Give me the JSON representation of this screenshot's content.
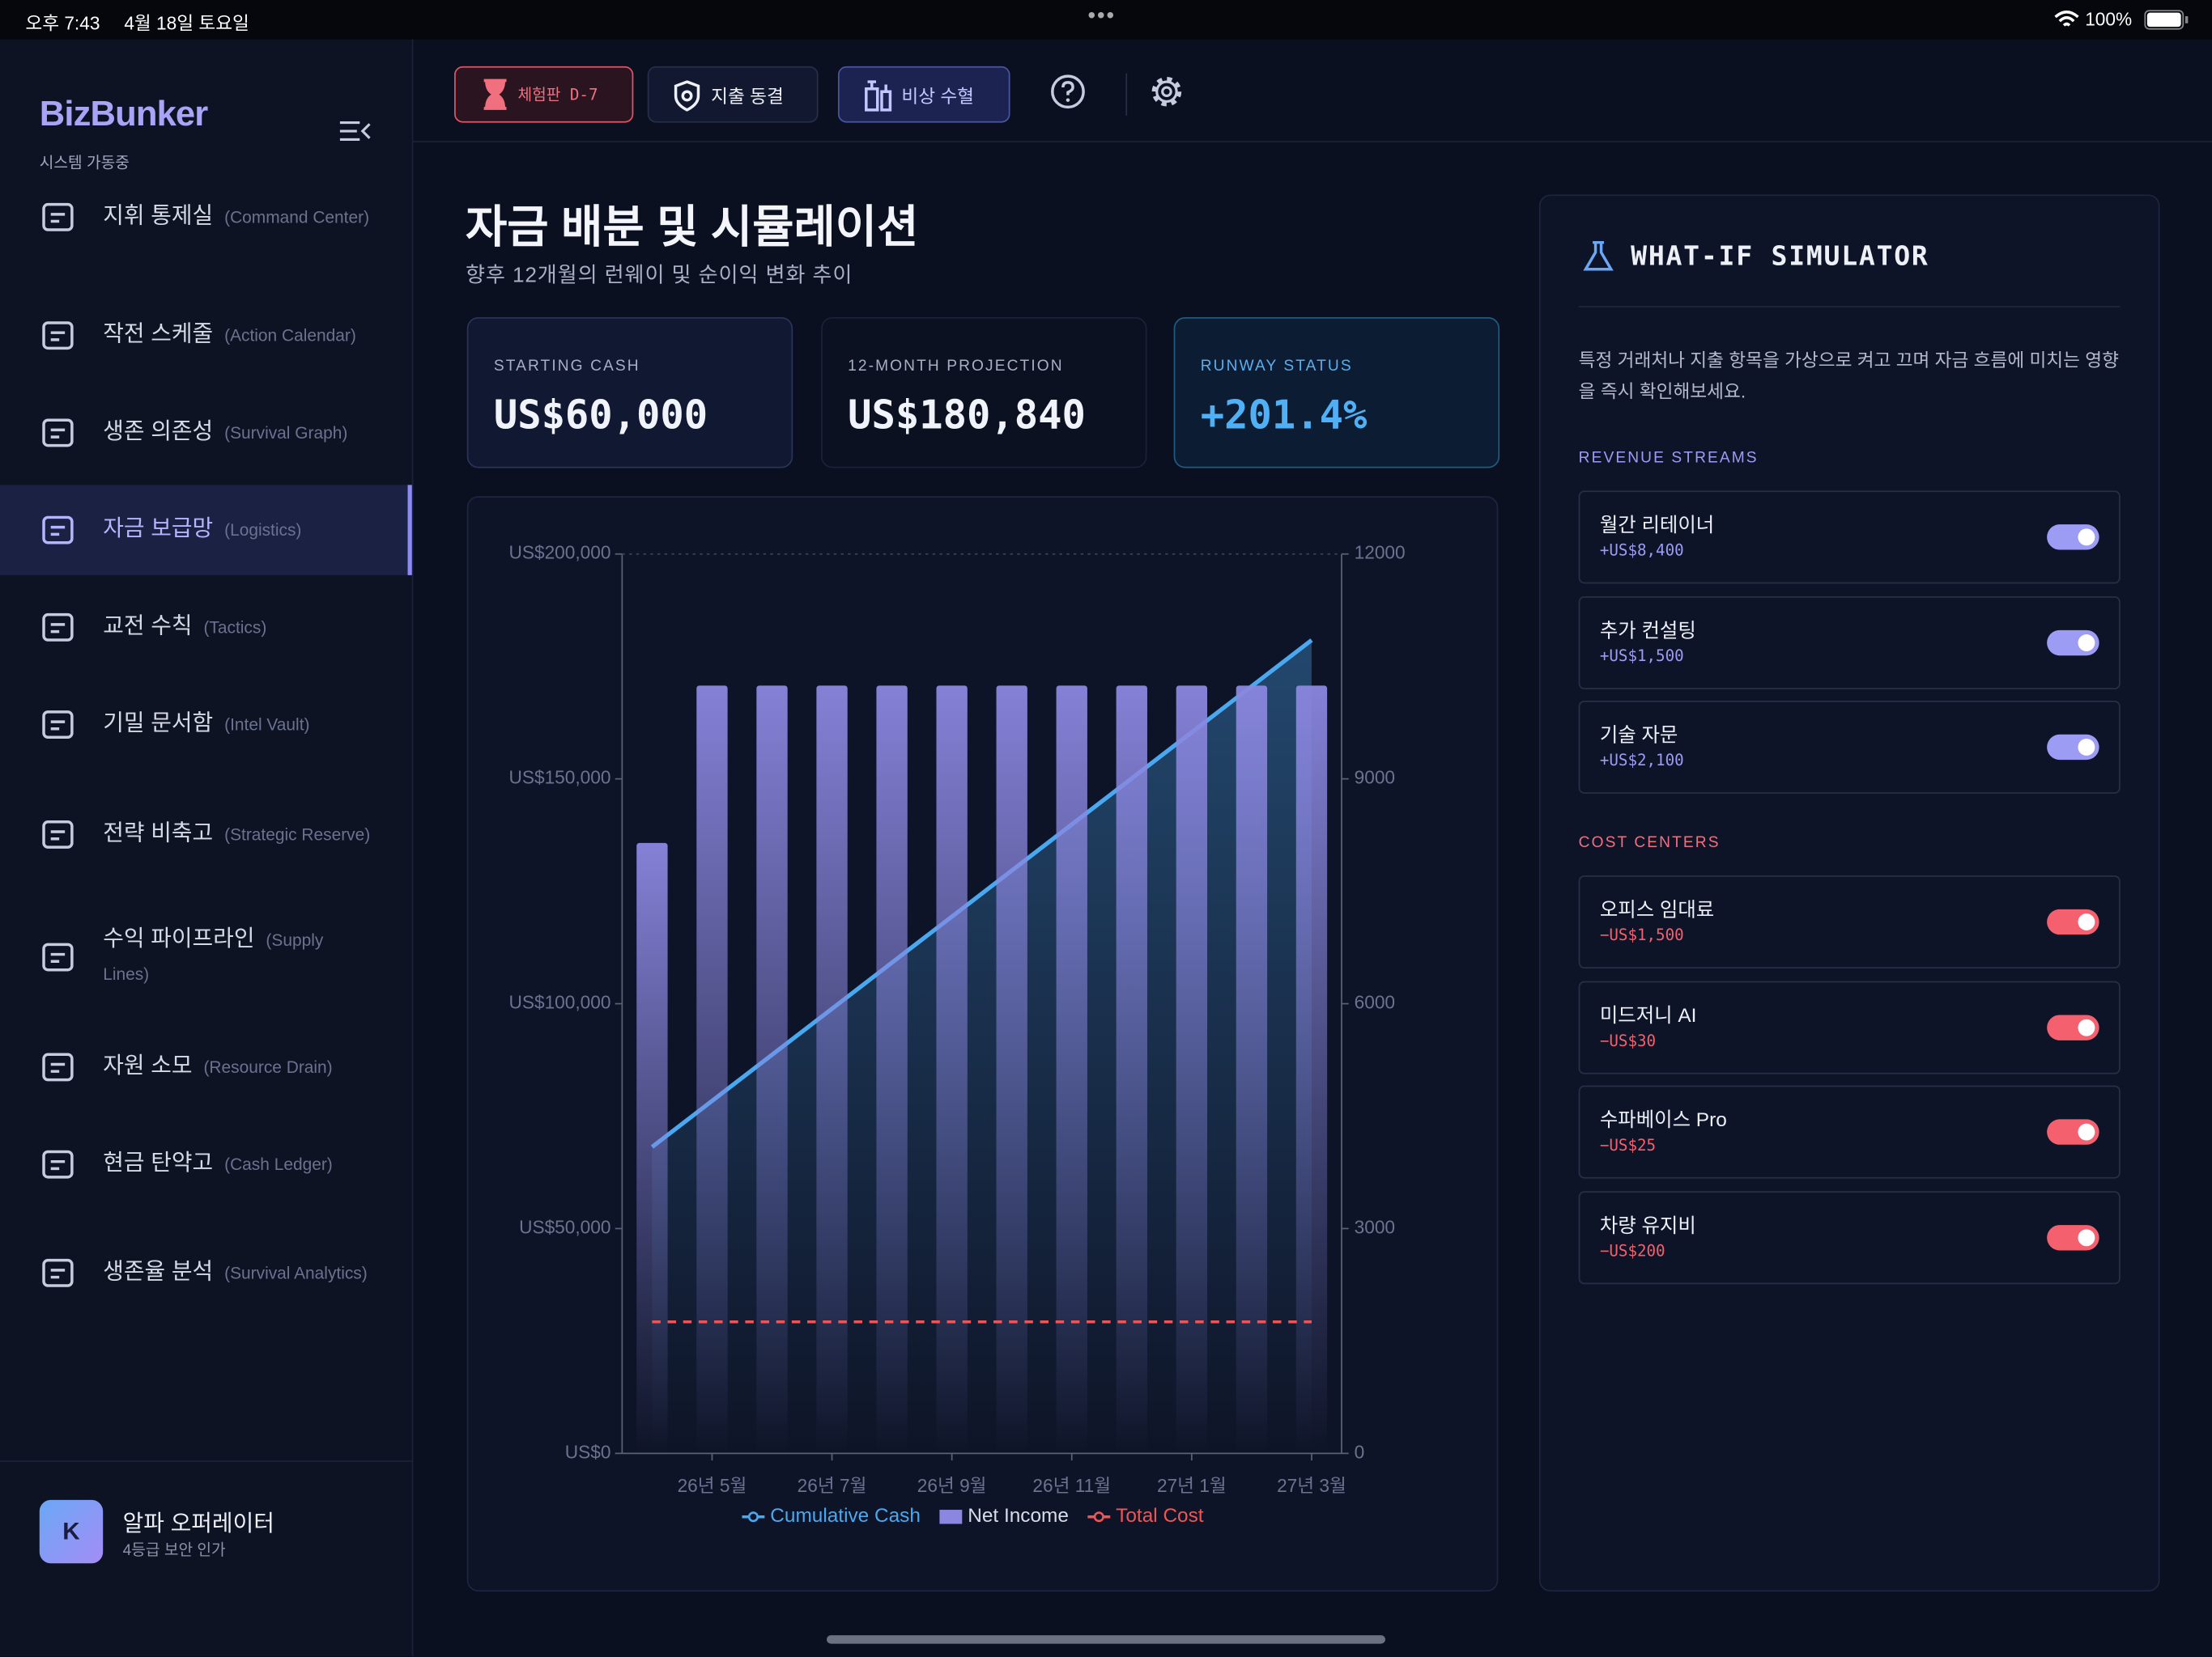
{
  "status_bar": {
    "time": "오후 7:43",
    "date": "4월 18일 토요일",
    "battery": "100%"
  },
  "sidebar": {
    "brand": "BizBunker",
    "status": "시스템 가동중",
    "items": [
      {
        "label": "지휘 통제실",
        "sub": "(Command Center)"
      },
      {
        "label": "작전 스케줄",
        "sub": "(Action Calendar)"
      },
      {
        "label": "생존 의존성",
        "sub": "(Survival Graph)"
      },
      {
        "label": "자금 보급망",
        "sub": "(Logistics)",
        "active": true
      },
      {
        "label": "교전 수칙",
        "sub": "(Tactics)"
      },
      {
        "label": "기밀 문서함",
        "sub": "(Intel Vault)"
      },
      {
        "label": "전략 비축고",
        "sub": "(Strategic Reserve)"
      },
      {
        "label": "수익 파이프라인",
        "sub": "(Supply Lines)"
      },
      {
        "label": "자원 소모",
        "sub": "(Resource Drain)"
      },
      {
        "label": "현금 탄약고",
        "sub": "(Cash Ledger)"
      },
      {
        "label": "생존율 분석",
        "sub": "(Survival Analytics)"
      }
    ],
    "user": {
      "avatar": "K",
      "name": "알파 오퍼레이터",
      "role": "4등급 보안 인가"
    }
  },
  "toolbar": {
    "buttons": [
      "체험판 D-7",
      "지출 동결",
      "비상 수혈"
    ]
  },
  "header": {
    "title": "자금 배분 및 시뮬레이션",
    "subtitle": "향후 12개월의 런웨이 및 순이익 변화 추이"
  },
  "kpis": [
    {
      "label": "STARTING CASH",
      "value": "US$60,000"
    },
    {
      "label": "12-MONTH PROJECTION",
      "value": "US$180,840"
    },
    {
      "label": "RUNWAY STATUS",
      "value": "+201.4%"
    }
  ],
  "chart_data": {
    "type": "combo",
    "categories": [
      null,
      "26년 5월",
      null,
      "26년 7월",
      null,
      "26년 9월",
      null,
      "26년 11월",
      null,
      "27년 1월",
      null,
      "27년 3월"
    ],
    "series": [
      {
        "name": "Cumulative Cash",
        "type": "line",
        "color": "#4aa8f0",
        "axis": "y",
        "values": [
          68145,
          78390,
          88635,
          98880,
          109125,
          119370,
          129615,
          139860,
          150105,
          160350,
          170595,
          180840
        ]
      },
      {
        "name": "Net Income",
        "type": "bar",
        "color": "#8b87e0",
        "axis": "y2",
        "values": [
          8145,
          10245,
          10245,
          10245,
          10245,
          10245,
          10245,
          10245,
          10245,
          10245,
          10245,
          10245
        ]
      },
      {
        "name": "Total Cost",
        "type": "line",
        "color": "#f05555",
        "axis": "y2",
        "dashed": true,
        "values": [
          1755,
          1755,
          1755,
          1755,
          1755,
          1755,
          1755,
          1755,
          1755,
          1755,
          1755,
          1755
        ]
      }
    ],
    "ylim": [
      0,
      200000
    ],
    "yticks": [
      {
        "value": 0,
        "label": "US$0"
      },
      {
        "value": 50000,
        "label": "US$50,000"
      },
      {
        "value": 100000,
        "label": "US$100,000"
      },
      {
        "value": 150000,
        "label": "US$150,000"
      },
      {
        "value": 200000,
        "label": "US$200,000"
      }
    ],
    "y2lim": [
      0,
      12000
    ],
    "y2ticks": [
      0,
      3000,
      6000,
      9000,
      12000
    ],
    "grid": false
  },
  "simulator": {
    "title": "WHAT-IF SIMULATOR",
    "description": "특정 거래처나 지출 항목을 가상으로 켜고 끄며 자금 흐름에 미치는 영향을 즉시 확인해보세요.",
    "revenue_title": "REVENUE STREAMS",
    "revenue": [
      {
        "name": "월간 리테이너",
        "amount": "+US$8,400",
        "enabled": true
      },
      {
        "name": "추가 컨설팅",
        "amount": "+US$1,500",
        "enabled": true
      },
      {
        "name": "기술 자문",
        "amount": "+US$2,100",
        "enabled": true
      }
    ],
    "cost_title": "COST CENTERS",
    "costs": [
      {
        "name": "오피스 임대료",
        "amount": "−US$1,500",
        "enabled": true
      },
      {
        "name": "미드저니 AI",
        "amount": "−US$30",
        "enabled": true
      },
      {
        "name": "수파베이스 Pro",
        "amount": "−US$25",
        "enabled": true
      },
      {
        "name": "차량 유지비",
        "amount": "−US$200",
        "enabled": true
      }
    ]
  }
}
